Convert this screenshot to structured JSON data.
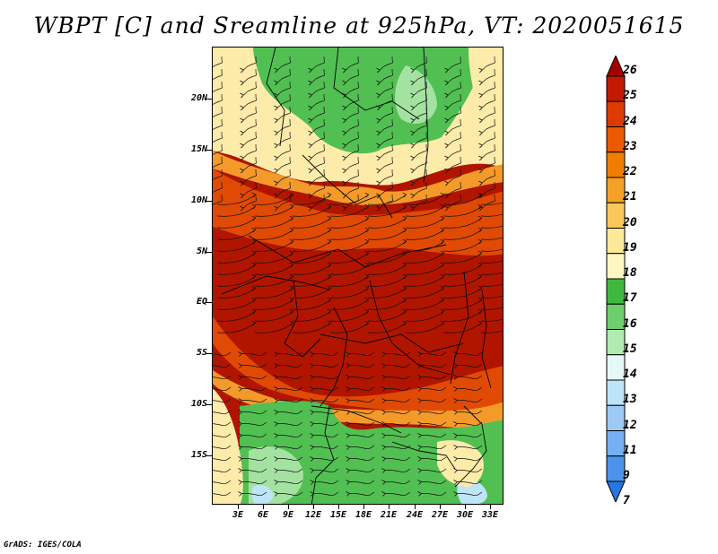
{
  "title": "WBPT [C] and Sreamline at 925hPa, VT: 2020051615",
  "footer": "GrADS: IGES/COLA",
  "lat_labels": [
    "20N",
    "15N",
    "10N",
    "5N",
    "EQ",
    "5S",
    "10S",
    "15S"
  ],
  "lon_labels": [
    "3E",
    "6E",
    "9E",
    "12E",
    "15E",
    "18E",
    "21E",
    "24E",
    "27E",
    "30E",
    "33E"
  ],
  "colorbar": {
    "levels": [
      "26",
      "25",
      "24",
      "23",
      "22",
      "21",
      "20",
      "19",
      "18",
      "17",
      "16",
      "15",
      "14",
      "13",
      "12",
      "11",
      "9",
      "7"
    ],
    "colors": [
      "#a50000",
      "#c21a00",
      "#dd3a00",
      "#ea5a00",
      "#f07d00",
      "#f5a028",
      "#fac85a",
      "#fde998",
      "#fff7c2",
      "#40b840",
      "#6dce6d",
      "#b1ebb1",
      "#e6f8f6",
      "#bee4f8",
      "#9dcaf5",
      "#74b0f2",
      "#4d93ea",
      "#2876e0"
    ]
  },
  "palette": {
    "hot": "#b11500",
    "warm": "#e04a05",
    "orange": "#f39a2a",
    "pale": "#fdebaa",
    "green": "#52bf52",
    "lightgreen": "#a4e2a2",
    "blue": "#bee4f8"
  }
}
